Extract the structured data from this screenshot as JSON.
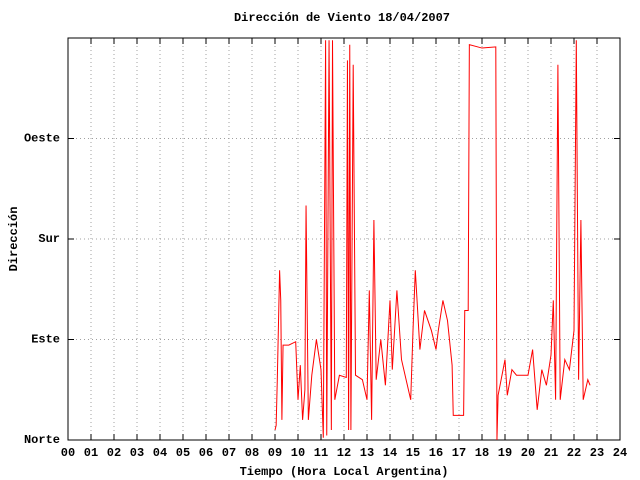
{
  "chart_data": {
    "type": "line",
    "title": "Dirección de Viento 18/04/2007",
    "xlabel": "Tiempo (Hora Local Argentina)",
    "ylabel": "Dirección",
    "color": "#ff0000",
    "grid": true,
    "xlim": [
      0,
      24
    ],
    "ylim": [
      0,
      360
    ],
    "xticks": [
      {
        "value": 0,
        "label": "00"
      },
      {
        "value": 1,
        "label": "01"
      },
      {
        "value": 2,
        "label": "02"
      },
      {
        "value": 3,
        "label": "03"
      },
      {
        "value": 4,
        "label": "04"
      },
      {
        "value": 5,
        "label": "05"
      },
      {
        "value": 6,
        "label": "06"
      },
      {
        "value": 7,
        "label": "07"
      },
      {
        "value": 8,
        "label": "08"
      },
      {
        "value": 9,
        "label": "09"
      },
      10,
      11,
      12,
      13,
      14,
      15,
      16,
      17,
      18,
      19,
      20,
      21,
      22,
      23,
      24
    ],
    "yticks": [
      {
        "value": 0,
        "label": "Norte"
      },
      {
        "value": 90,
        "label": "Este"
      },
      {
        "value": 180,
        "label": "Sur"
      },
      {
        "value": 270,
        "label": "Oeste"
      }
    ],
    "x": [
      9.0,
      9.05,
      9.1,
      9.2,
      9.25,
      9.3,
      9.35,
      9.6,
      9.9,
      10.0,
      10.1,
      10.2,
      10.3,
      10.35,
      10.45,
      10.6,
      10.8,
      11.0,
      11.1,
      11.2,
      11.25,
      11.35,
      11.45,
      11.5,
      11.6,
      11.8,
      12.1,
      12.15,
      12.2,
      12.25,
      12.3,
      12.4,
      12.5,
      12.8,
      13.0,
      13.1,
      13.2,
      13.3,
      13.4,
      13.6,
      13.8,
      14.0,
      14.1,
      14.3,
      14.5,
      14.9,
      15.0,
      15.1,
      15.3,
      15.5,
      15.8,
      16.0,
      16.1,
      16.3,
      16.5,
      16.7,
      16.75,
      17.2,
      17.25,
      17.4,
      17.45,
      18.0,
      18.6,
      18.65,
      18.7,
      19.0,
      19.1,
      19.3,
      19.5,
      20.0,
      20.2,
      20.4,
      20.6,
      20.8,
      21.0,
      21.1,
      21.2,
      21.3,
      21.4,
      21.6,
      21.8,
      22.0,
      22.1,
      22.2,
      22.3,
      22.4,
      22.6,
      22.7
    ],
    "values": [
      9,
      13,
      54,
      152,
      125,
      18,
      85,
      85,
      88,
      36,
      67,
      18,
      45,
      210,
      18,
      58,
      90,
      63,
      2,
      358,
      4,
      358,
      9,
      358,
      36,
      58,
      56,
      340,
      9,
      354,
      9,
      336,
      58,
      54,
      36,
      134,
      18,
      197,
      54,
      90,
      49,
      125,
      63,
      134,
      72,
      36,
      98,
      152,
      81,
      116,
      98,
      81,
      98,
      125,
      107,
      67,
      22,
      22,
      116,
      116,
      354,
      351,
      352,
      0,
      40,
      72,
      40,
      63,
      58,
      58,
      81,
      27,
      63,
      49,
      76,
      125,
      36,
      336,
      36,
      72,
      63,
      98,
      358,
      54,
      197,
      36,
      54,
      49
    ]
  }
}
